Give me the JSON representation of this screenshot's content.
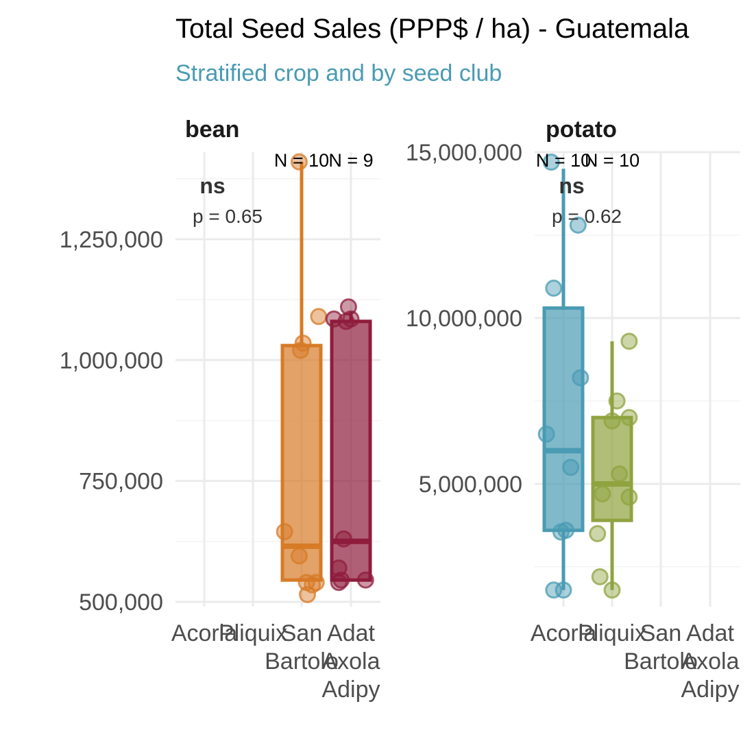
{
  "title": "Total Seed Sales (PPP$ / ha) - Guatemala",
  "subtitle": "Stratified crop and by seed club",
  "colors": {
    "subtitle": "#4a9bb3",
    "grid_major": "#ebebeb",
    "grid_minor": "#f3f3f3",
    "Acorla": "#4a9bb3",
    "Pliquix": "#8fa33f",
    "San Bartolo": "#d77b27",
    "Adat Axola Adipy": "#8f1c3c"
  },
  "chart_data": [
    {
      "type": "box",
      "panel": "bean",
      "categories": [
        "Acorla",
        "Pliquix",
        "San\nBartolo",
        "Adat\nAxola\nAdipy"
      ],
      "ylim": [
        490000,
        1430000
      ],
      "yticks": [
        500000,
        750000,
        1000000,
        1250000
      ],
      "ytick_labels": [
        "500,000",
        "750,000",
        "1,000,000",
        "1,250,000"
      ],
      "grid": true,
      "test": {
        "label": "ns",
        "p": "p = 0.65"
      },
      "counts": [
        {
          "category": "San\nBartolo",
          "label": "N = 10"
        },
        {
          "category": "Adat\nAxola\nAdipy",
          "label": "N = 9"
        }
      ],
      "series": [
        {
          "category": "San\nBartolo",
          "color_key": "San Bartolo",
          "box": {
            "q1": 545000,
            "median": 615000,
            "q3": 1030000,
            "whisker_low": 545000,
            "whisker_high": 1410000
          },
          "points": [
            {
              "x": -0.05,
              "y": 1410000
            },
            {
              "x": 0.35,
              "y": 1090000
            },
            {
              "x": -0.02,
              "y": 1020000
            },
            {
              "x": 0.03,
              "y": 1035000
            },
            {
              "x": -0.35,
              "y": 645000
            },
            {
              "x": -0.05,
              "y": 595000
            },
            {
              "x": 0.1,
              "y": 540000
            },
            {
              "x": 0.3,
              "y": 540000
            },
            {
              "x": 0.12,
              "y": 515000
            },
            {
              "x": 0.22,
              "y": 535000
            }
          ]
        },
        {
          "category": "Adat\nAxola\nAdipy",
          "color_key": "Adat Axola Adipy",
          "box": {
            "q1": 545000,
            "median": 625000,
            "q3": 1080000,
            "whisker_low": 545000,
            "whisker_high": 1100000
          },
          "points": [
            {
              "x": -0.1,
              "y": 1080000
            },
            {
              "x": -0.35,
              "y": 1085000
            },
            {
              "x": -0.05,
              "y": 1110000
            },
            {
              "x": 0.0,
              "y": 1085000
            },
            {
              "x": -0.15,
              "y": 630000
            },
            {
              "x": -0.25,
              "y": 570000
            },
            {
              "x": -0.25,
              "y": 540000
            },
            {
              "x": -0.2,
              "y": 545000
            },
            {
              "x": 0.3,
              "y": 545000
            }
          ]
        }
      ]
    },
    {
      "type": "box",
      "panel": "potato",
      "categories": [
        "Acorla",
        "Pliquix",
        "San\nBartolo",
        "Adat\nAxola\nAdipy"
      ],
      "ylim": [
        1300000,
        15000000
      ],
      "yticks": [
        5000000,
        10000000,
        15000000
      ],
      "ytick_labels": [
        "5,000,000",
        "10,000,000",
        "15,000,000"
      ],
      "grid": true,
      "test": {
        "label": "ns",
        "p": "p = 0.62"
      },
      "counts": [
        {
          "category": "Acorla",
          "label": "N = 10"
        },
        {
          "category": "Pliquix",
          "label": "N = 10"
        }
      ],
      "series": [
        {
          "category": "Acorla",
          "color_key": "Acorla",
          "box": {
            "q1": 3600000,
            "median": 6000000,
            "q3": 10300000,
            "whisker_low": 1800000,
            "whisker_high": 14500000
          },
          "points": [
            {
              "x": -0.25,
              "y": 14700000
            },
            {
              "x": 0.3,
              "y": 12800000
            },
            {
              "x": -0.2,
              "y": 10900000
            },
            {
              "x": 0.35,
              "y": 8200000
            },
            {
              "x": -0.35,
              "y": 6500000
            },
            {
              "x": 0.15,
              "y": 5500000
            },
            {
              "x": 0.05,
              "y": 3600000
            },
            {
              "x": -0.05,
              "y": 3550000
            },
            {
              "x": -0.2,
              "y": 1800000
            },
            {
              "x": 0.0,
              "y": 1800000
            }
          ]
        },
        {
          "category": "Pliquix",
          "color_key": "Pliquix",
          "box": {
            "q1": 3900000,
            "median": 5000000,
            "q3": 7000000,
            "whisker_low": 1800000,
            "whisker_high": 9300000
          },
          "points": [
            {
              "x": 0.35,
              "y": 9300000
            },
            {
              "x": 0.1,
              "y": 7500000
            },
            {
              "x": 0.35,
              "y": 7000000
            },
            {
              "x": 0.0,
              "y": 6900000
            },
            {
              "x": 0.15,
              "y": 5300000
            },
            {
              "x": -0.2,
              "y": 4700000
            },
            {
              "x": 0.35,
              "y": 4600000
            },
            {
              "x": -0.3,
              "y": 3500000
            },
            {
              "x": -0.25,
              "y": 2200000
            },
            {
              "x": 0.0,
              "y": 1800000
            }
          ]
        }
      ]
    }
  ]
}
